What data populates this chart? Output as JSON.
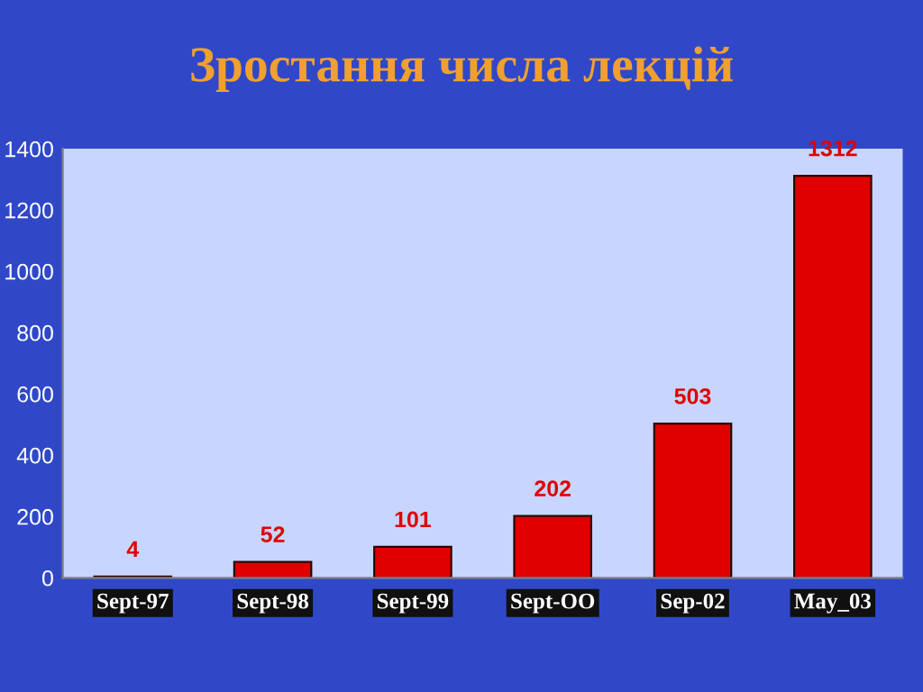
{
  "chart_data": {
    "type": "bar",
    "title": "Зростання числа лекцій",
    "categories": [
      "Sept-97",
      "Sept-98",
      "Sept-99",
      "Sept-OO",
      "Sep-02",
      "May_03"
    ],
    "values": [
      4,
      52,
      101,
      202,
      503,
      1312
    ],
    "color": "#e00000",
    "ylim": [
      0,
      1400
    ],
    "yticks": [
      0,
      200,
      400,
      600,
      800,
      1000,
      1200,
      1400
    ],
    "data_labels": true,
    "grid": false,
    "legend": false
  }
}
